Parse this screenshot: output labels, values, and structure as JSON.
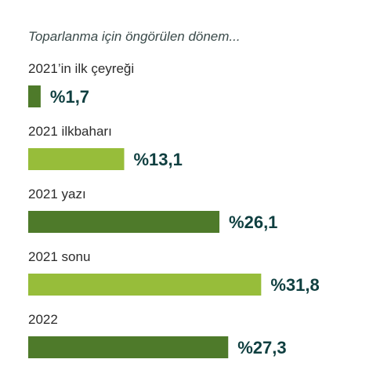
{
  "chart_data": {
    "type": "bar",
    "orientation": "horizontal",
    "subtitle": "Toparlanma için öngörülen dönem...",
    "categories": [
      "2021’in ilk çeyreği",
      "2021 ilkbaharı",
      "2021 yazı",
      "2021 sonu",
      "2022"
    ],
    "values": [
      1.7,
      13.1,
      26.1,
      31.8,
      27.3
    ],
    "value_labels": [
      "%1,7",
      "%13,1",
      "%26,1",
      "%31,8",
      "%27,3"
    ],
    "bar_colors": [
      "#4e7a2a",
      "#97bd3a",
      "#4e7a2a",
      "#97bd3a",
      "#4e7a2a"
    ],
    "label_color": "#0f3f40",
    "category_label_color": "#2b2b2b",
    "grid": false,
    "legend": "none"
  }
}
